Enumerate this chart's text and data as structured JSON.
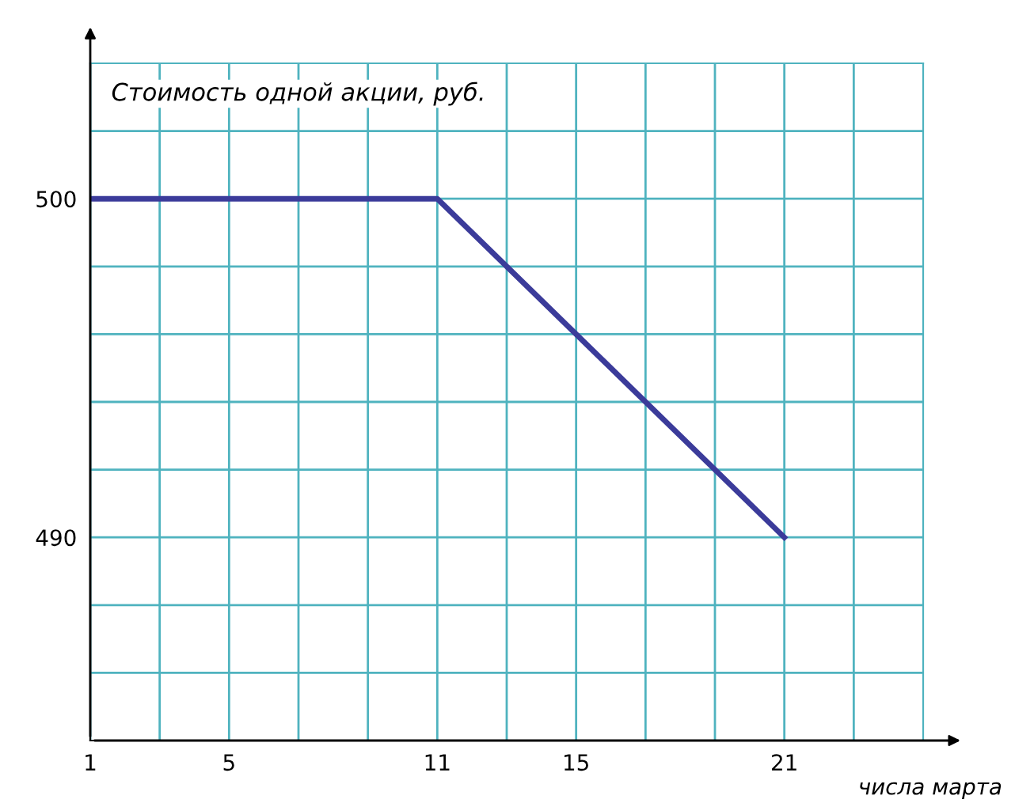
{
  "chart_data": {
    "type": "line",
    "xlabel": "числа марта",
    "ylabel": "Стоимость одной акции, руб.",
    "x": [
      1,
      11,
      21
    ],
    "series": [
      {
        "color": "#3b3b9a",
        "values": [
          500,
          500,
          490
        ]
      }
    ],
    "xlim": [
      1,
      25
    ],
    "ylim": [
      484,
      504
    ],
    "xticks": [
      1,
      {
        "value": 3,
        "label": null
      },
      5,
      {
        "value": 7,
        "label": null
      },
      {
        "value": 9,
        "label": null
      },
      11,
      {
        "value": 13,
        "label": null
      },
      15,
      {
        "value": 17,
        "label": null
      },
      {
        "value": 19,
        "label": null
      },
      21,
      {
        "value": 23,
        "label": null
      }
    ],
    "yticks": [
      {
        "value": 486,
        "label": null
      },
      {
        "value": 488,
        "label": null
      },
      490,
      {
        "value": 492,
        "label": null
      },
      {
        "value": 494,
        "label": null
      },
      {
        "value": 496,
        "label": null
      },
      {
        "value": 498,
        "label": null
      },
      500,
      {
        "value": 502,
        "label": null
      }
    ],
    "grid": true,
    "marker": "none",
    "line_style": "solid"
  }
}
